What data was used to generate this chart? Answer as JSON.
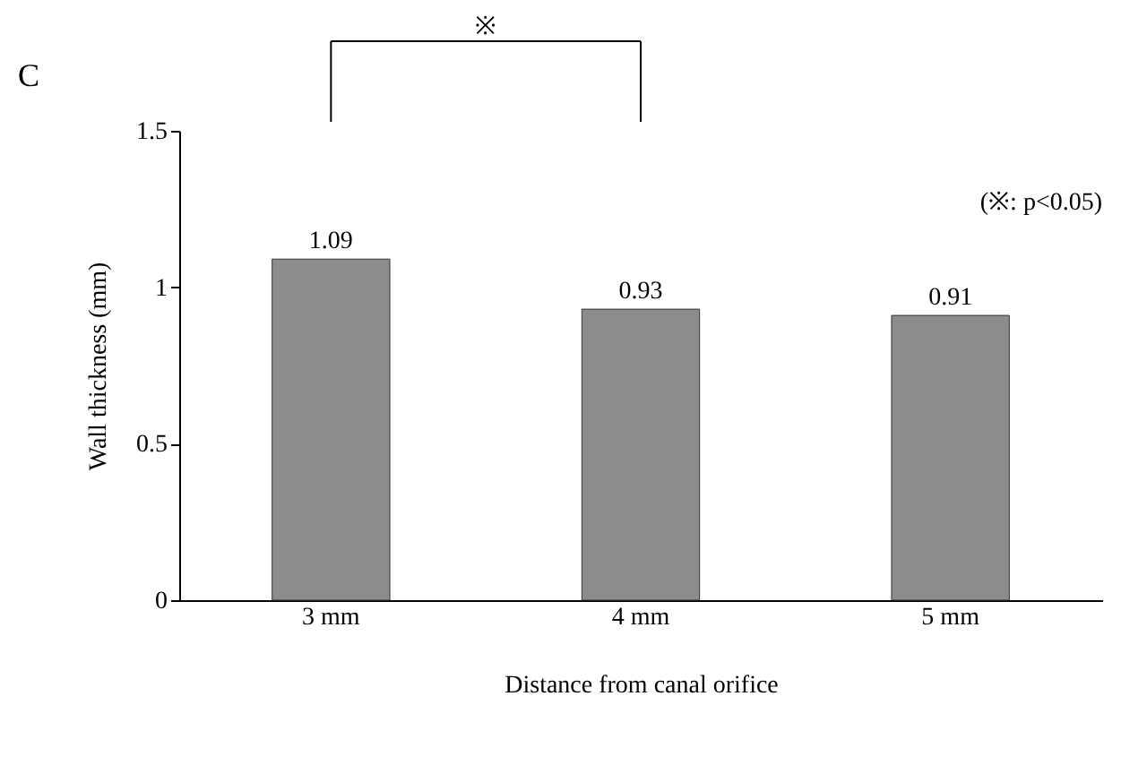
{
  "chart_data": {
    "type": "bar",
    "title": "C",
    "categories": [
      "3 mm",
      "4 mm",
      "5 mm"
    ],
    "values": [
      1.09,
      0.93,
      0.91
    ],
    "color": "#8c8c8c",
    "ylim": [
      0,
      1.5
    ],
    "yticks": [
      0,
      0.5,
      1,
      1.5
    ],
    "xlabel": "Distance from canal orifice",
    "ylabel": "Wall thickness (mm)",
    "data_labels": true,
    "grid": false,
    "annotations": [
      "※",
      "(※: p<0.05)"
    ]
  }
}
